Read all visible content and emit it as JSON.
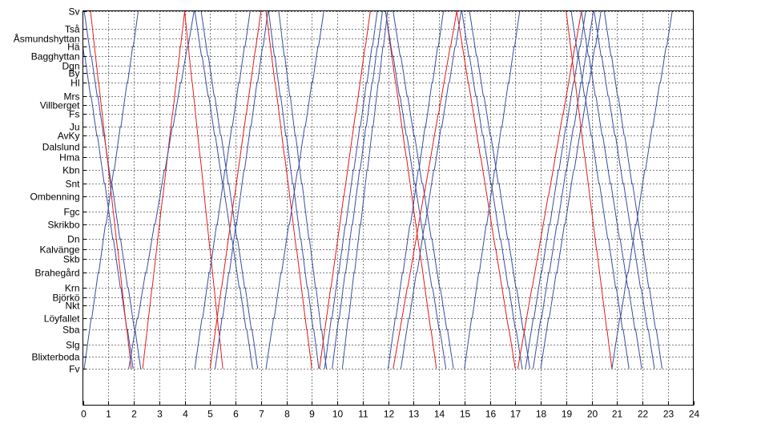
{
  "chart_data": {
    "type": "line",
    "title": "",
    "xlabel": "",
    "ylabel": "",
    "xlim": [
      0,
      24
    ],
    "x_ticks": [
      0,
      1,
      2,
      3,
      4,
      5,
      6,
      7,
      8,
      9,
      10,
      11,
      12,
      13,
      14,
      15,
      16,
      17,
      18,
      19,
      20,
      21,
      22,
      23,
      24
    ],
    "stations": [
      {
        "name": "Sv",
        "pos": 0
      },
      {
        "name": "Tså",
        "pos": 22
      },
      {
        "name": "Åsmundshyttan",
        "pos": 34
      },
      {
        "name": "Hä",
        "pos": 44
      },
      {
        "name": "Bagghyttan",
        "pos": 56
      },
      {
        "name": "Dgn",
        "pos": 68
      },
      {
        "name": "By",
        "pos": 77
      },
      {
        "name": "Hl",
        "pos": 89
      },
      {
        "name": "Mrs",
        "pos": 106
      },
      {
        "name": "Villberget",
        "pos": 117
      },
      {
        "name": "Fs",
        "pos": 128
      },
      {
        "name": "Ju",
        "pos": 144
      },
      {
        "name": "AvKy",
        "pos": 155
      },
      {
        "name": "Dalslund",
        "pos": 169
      },
      {
        "name": "Hma",
        "pos": 182
      },
      {
        "name": "Kbn",
        "pos": 198
      },
      {
        "name": "Snt",
        "pos": 215
      },
      {
        "name": "Ombenning",
        "pos": 231
      },
      {
        "name": "Fgc",
        "pos": 250
      },
      {
        "name": "Skrikbo",
        "pos": 266
      },
      {
        "name": "Dn",
        "pos": 284
      },
      {
        "name": "Kalvänge",
        "pos": 297
      },
      {
        "name": "Skb",
        "pos": 309
      },
      {
        "name": "Brahegård",
        "pos": 326
      },
      {
        "name": "Krn",
        "pos": 345
      },
      {
        "name": "Björkö",
        "pos": 357
      },
      {
        "name": "Nkt",
        "pos": 367
      },
      {
        "name": "Löyfallet",
        "pos": 383
      },
      {
        "name": "Sba",
        "pos": 397
      },
      {
        "name": "Slg",
        "pos": 416
      },
      {
        "name": "Blixterboda",
        "pos": 431
      },
      {
        "name": "Fv",
        "pos": 446
      }
    ],
    "colors": {
      "passenger": "#e41a1c",
      "freight": "#3a4fa0",
      "grid": "#000000"
    },
    "series": [
      {
        "kind": "freight",
        "direction": "down",
        "start": -0.2,
        "end": 2.0
      },
      {
        "kind": "freight",
        "direction": "down",
        "start": 0.05,
        "end": 2.3
      },
      {
        "kind": "passenger",
        "direction": "down",
        "start": 0.3,
        "end": 1.9
      },
      {
        "kind": "freight",
        "direction": "up",
        "start": 0.05,
        "end": 2.2
      },
      {
        "kind": "passenger",
        "direction": "up",
        "start": 2.35,
        "end": 4.0
      },
      {
        "kind": "freight",
        "direction": "up",
        "start": 1.8,
        "end": 4.4
      },
      {
        "kind": "passenger",
        "direction": "down",
        "start": 4.0,
        "end": 5.5
      },
      {
        "kind": "freight",
        "direction": "down",
        "start": 4.4,
        "end": 6.7
      },
      {
        "kind": "freight",
        "direction": "down",
        "start": 4.65,
        "end": 6.9
      },
      {
        "kind": "freight",
        "direction": "up",
        "start": 4.4,
        "end": 6.6
      },
      {
        "kind": "passenger",
        "direction": "up",
        "start": 5.0,
        "end": 7.0
      },
      {
        "kind": "freight",
        "direction": "up",
        "start": 5.2,
        "end": 7.3
      },
      {
        "kind": "passenger",
        "direction": "down",
        "start": 7.2,
        "end": 9.0
      },
      {
        "kind": "freight",
        "direction": "down",
        "start": 7.3,
        "end": 9.3
      },
      {
        "kind": "freight",
        "direction": "down",
        "start": 7.7,
        "end": 9.6
      },
      {
        "kind": "freight",
        "direction": "up",
        "start": 7.2,
        "end": 9.5
      },
      {
        "kind": "passenger",
        "direction": "up",
        "start": 9.3,
        "end": 11.3
      },
      {
        "kind": "freight",
        "direction": "up",
        "start": 9.5,
        "end": 11.6
      },
      {
        "kind": "freight",
        "direction": "up",
        "start": 9.8,
        "end": 11.8
      },
      {
        "kind": "freight",
        "direction": "up",
        "start": 10.2,
        "end": 12.0
      },
      {
        "kind": "passenger",
        "direction": "down",
        "start": 11.9,
        "end": 13.9
      },
      {
        "kind": "freight",
        "direction": "down",
        "start": 11.9,
        "end": 14.3
      },
      {
        "kind": "freight",
        "direction": "down",
        "start": 12.2,
        "end": 14.6
      },
      {
        "kind": "freight",
        "direction": "up",
        "start": 12.0,
        "end": 14.2
      },
      {
        "kind": "passenger",
        "direction": "up",
        "start": 12.2,
        "end": 14.7
      },
      {
        "kind": "freight",
        "direction": "up",
        "start": 12.5,
        "end": 14.9
      },
      {
        "kind": "passenger",
        "direction": "down",
        "start": 14.7,
        "end": 17.0
      },
      {
        "kind": "freight",
        "direction": "down",
        "start": 14.9,
        "end": 17.3
      },
      {
        "kind": "freight",
        "direction": "down",
        "start": 15.2,
        "end": 17.6
      },
      {
        "kind": "freight",
        "direction": "up",
        "start": 15.0,
        "end": 17.2
      },
      {
        "kind": "passenger",
        "direction": "up",
        "start": 17.1,
        "end": 19.6
      },
      {
        "kind": "freight",
        "direction": "up",
        "start": 17.4,
        "end": 19.8
      },
      {
        "kind": "freight",
        "direction": "up",
        "start": 17.7,
        "end": 20.1
      },
      {
        "kind": "freight",
        "direction": "up",
        "start": 18.0,
        "end": 20.4
      },
      {
        "kind": "passenger",
        "direction": "down",
        "start": 19.0,
        "end": 20.8
      },
      {
        "kind": "freight",
        "direction": "down",
        "start": 19.2,
        "end": 21.5
      },
      {
        "kind": "freight",
        "direction": "down",
        "start": 19.6,
        "end": 22.0
      },
      {
        "kind": "freight",
        "direction": "down",
        "start": 20.1,
        "end": 22.5
      },
      {
        "kind": "freight",
        "direction": "down",
        "start": 20.5,
        "end": 22.8
      },
      {
        "kind": "freight",
        "direction": "up",
        "start": 20.8,
        "end": 23.2
      }
    ],
    "grid": true,
    "legend": "none"
  }
}
